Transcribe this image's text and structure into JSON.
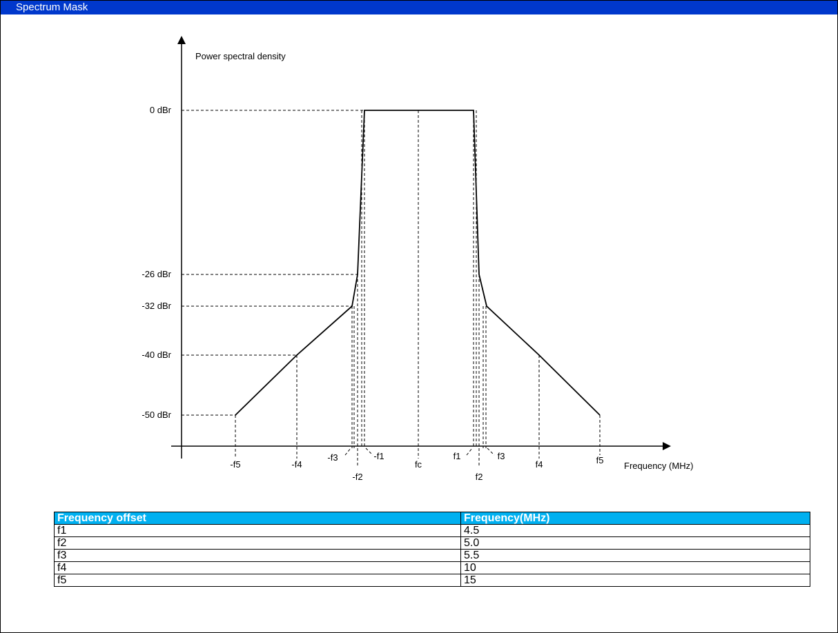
{
  "header": {
    "title": "Spectrum Mask"
  },
  "figure": {
    "y_axis_label": "Power spectral density",
    "x_axis_label": "Frequency (MHz)",
    "levels": [
      "0 dBr",
      "-26 dBr",
      "-32 dBr",
      "-40 dBr",
      "-50 dBr"
    ],
    "frequencies": [
      "-f5",
      "-f4",
      "-f3",
      "-f2",
      "-f1",
      "fc",
      "f1",
      "f2",
      "f3",
      "f4",
      "f5"
    ]
  },
  "table": {
    "headers": [
      "Frequency offset",
      "Frequency(MHz)"
    ],
    "rows": [
      [
        "f1",
        "4.5"
      ],
      [
        "f2",
        "5.0"
      ],
      [
        "f3",
        "5.5"
      ],
      [
        "f4",
        "10"
      ],
      [
        "f5",
        "15"
      ]
    ]
  }
}
